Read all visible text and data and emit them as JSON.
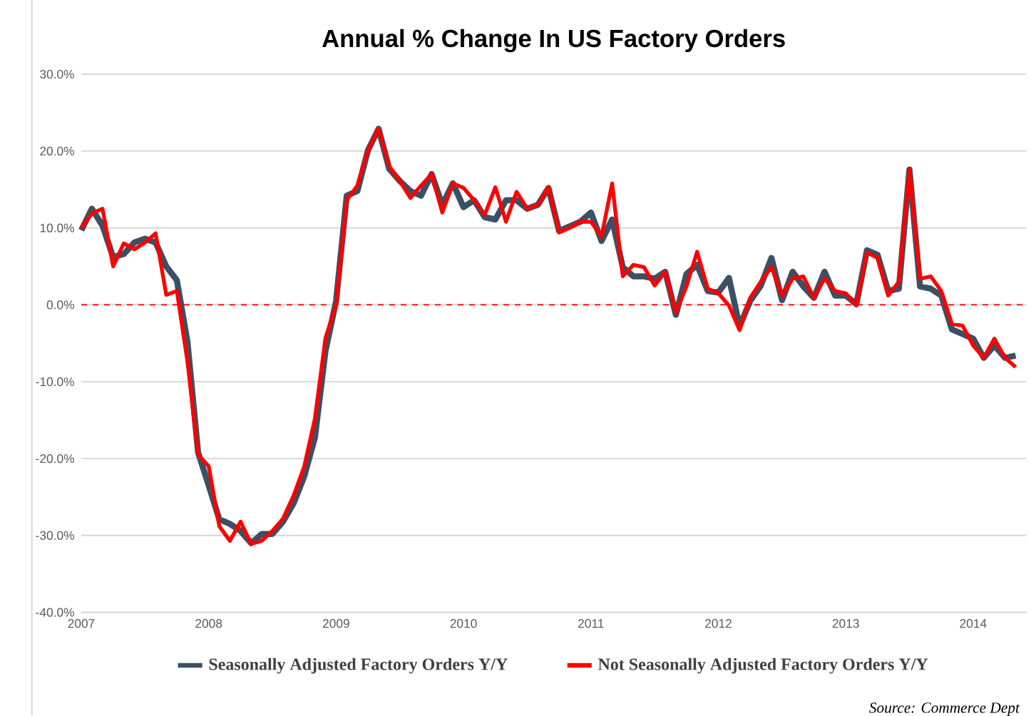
{
  "chart_data": {
    "type": "line",
    "title": "Annual % Change In US Factory Orders",
    "x": [
      "2007-01",
      "2007-02",
      "2007-03",
      "2007-04",
      "2007-05",
      "2007-06",
      "2007-07",
      "2007-08",
      "2007-09",
      "2007-10",
      "2007-11",
      "2007-12",
      "2008-01",
      "2008-02",
      "2008-03",
      "2008-04",
      "2008-05",
      "2008-06",
      "2008-07",
      "2008-08",
      "2008-09",
      "2008-10",
      "2008-11",
      "2008-12",
      "2009-01",
      "2009-02",
      "2009-03",
      "2009-04",
      "2009-05",
      "2009-06",
      "2009-07",
      "2009-08",
      "2009-09",
      "2009-10",
      "2009-11",
      "2009-12",
      "2010-01",
      "2010-02",
      "2010-03",
      "2010-04",
      "2010-05",
      "2010-06",
      "2010-07",
      "2010-08",
      "2010-09",
      "2010-10",
      "2010-11",
      "2010-12",
      "2011-01",
      "2011-02",
      "2011-03",
      "2011-04",
      "2011-05",
      "2011-06",
      "2011-07",
      "2011-08",
      "2011-09",
      "2011-10",
      "2011-11",
      "2011-12",
      "2012-01",
      "2012-02",
      "2012-03",
      "2012-04",
      "2012-05",
      "2012-06",
      "2012-07",
      "2012-08",
      "2012-09",
      "2012-10",
      "2012-11",
      "2012-12",
      "2013-01",
      "2013-02",
      "2013-03",
      "2013-04",
      "2013-05",
      "2013-06",
      "2013-07",
      "2013-08",
      "2013-09",
      "2013-10",
      "2013-11",
      "2013-12",
      "2014-01",
      "2014-02",
      "2014-03",
      "2014-04",
      "2014-05"
    ],
    "series": [
      {
        "name": "Seasonally Adjusted Factory Orders Y/Y",
        "color": "#3d4f63",
        "values": [
          9.7,
          12.5,
          10.3,
          6.2,
          6.6,
          8.1,
          8.6,
          8.1,
          5.0,
          3.2,
          -4.8,
          -19.2,
          -23.5,
          -27.9,
          -28.5,
          -29.4,
          -31.0,
          -29.8,
          -29.8,
          -28.2,
          -25.8,
          -22.3,
          -17.3,
          -6.0,
          0.5,
          14.2,
          14.8,
          20.1,
          22.9,
          17.7,
          16.1,
          14.8,
          14.2,
          17.0,
          13.0,
          15.8,
          12.7,
          13.6,
          11.4,
          11.1,
          13.6,
          13.6,
          12.5,
          13.0,
          15.2,
          9.6,
          10.2,
          10.8,
          12.0,
          8.3,
          11.1,
          4.9,
          3.7,
          3.7,
          3.4,
          4.3,
          -1.3,
          4.0,
          5.2,
          1.8,
          1.6,
          3.5,
          -2.8,
          0.5,
          2.5,
          6.1,
          0.6,
          4.3,
          2.4,
          0.9,
          4.3,
          1.2,
          1.2,
          0.1,
          7.1,
          6.5,
          1.8,
          2.1,
          17.6,
          2.4,
          2.1,
          1.2,
          -3.2,
          -3.8,
          -4.4,
          -6.9,
          -5.3,
          -6.9,
          -6.6
        ]
      },
      {
        "name": "Not Seasonally Adjusted Factory Orders Y/Y",
        "color": "#ff0000",
        "values": [
          10.0,
          11.9,
          12.5,
          5.0,
          8.0,
          7.2,
          8.1,
          9.3,
          1.3,
          1.8,
          -7.4,
          -19.5,
          -21.0,
          -28.8,
          -30.7,
          -28.2,
          -31.1,
          -30.7,
          -29.4,
          -27.8,
          -24.8,
          -21.0,
          -14.8,
          -4.3,
          0.0,
          13.6,
          15.5,
          20.1,
          22.9,
          18.0,
          16.1,
          13.9,
          15.5,
          17.0,
          12.0,
          15.8,
          15.2,
          13.6,
          11.7,
          15.3,
          10.8,
          14.7,
          12.5,
          13.0,
          15.3,
          9.4,
          10.0,
          10.8,
          10.8,
          8.9,
          15.8,
          3.7,
          5.2,
          4.9,
          2.5,
          4.3,
          -1.0,
          2.4,
          6.9,
          2.1,
          1.5,
          -0.1,
          -3.3,
          0.9,
          3.0,
          4.9,
          1.2,
          3.4,
          3.7,
          0.9,
          3.4,
          1.8,
          1.5,
          -0.1,
          6.8,
          6.1,
          1.2,
          3.0,
          17.6,
          3.4,
          3.7,
          1.8,
          -2.5,
          -2.7,
          -5.3,
          -6.9,
          -4.4,
          -6.9,
          -8.1
        ]
      }
    ],
    "xlim": [
      "2007-01",
      "2014-06"
    ],
    "xticks": [
      "2007",
      "2008",
      "2009",
      "2010",
      "2011",
      "2012",
      "2013",
      "2014"
    ],
    "ylim": [
      -40,
      30
    ],
    "yticks": [
      {
        "value": -40,
        "label": "-40.0%"
      },
      {
        "value": -30,
        "label": "-30.0%"
      },
      {
        "value": -20,
        "label": "-20.0%"
      },
      {
        "value": -10,
        "label": "-10.0%"
      },
      {
        "value": 0,
        "label": "0.0%"
      },
      {
        "value": 10,
        "label": "10.0%"
      },
      {
        "value": 20,
        "label": "20.0%"
      },
      {
        "value": 30,
        "label": "30.0%"
      }
    ],
    "grid": "y",
    "legend": "bottom",
    "marker": "none",
    "line_style": "solid",
    "ref_lines": [
      {
        "axis": "y",
        "value": 0,
        "color": "#ff0000",
        "line_style": "dashed"
      }
    ],
    "annotations": [
      "Source: Commerce Dept"
    ]
  }
}
